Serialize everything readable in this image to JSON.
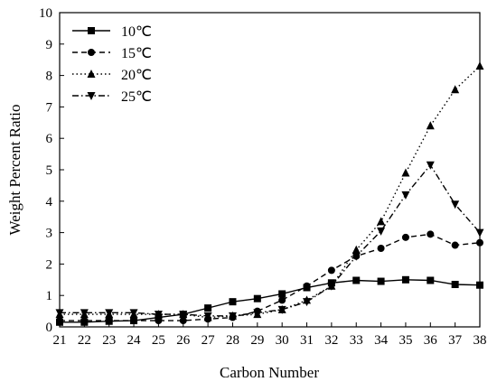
{
  "chart_data": {
    "type": "line",
    "title": "",
    "xlabel": "Carbon Number",
    "ylabel": "Weight Percent Ratio",
    "x": [
      21,
      22,
      23,
      24,
      25,
      26,
      27,
      28,
      29,
      30,
      31,
      32,
      33,
      34,
      35,
      36,
      37,
      38
    ],
    "xlim": [
      21,
      38
    ],
    "ylim": [
      0,
      10
    ],
    "yticks": [
      0,
      1,
      2,
      3,
      4,
      5,
      6,
      7,
      8,
      9,
      10
    ],
    "grid": false,
    "legend_position": "top-left",
    "series": [
      {
        "name": "10℃",
        "line_style": "solid",
        "marker": "square",
        "values": [
          0.15,
          0.15,
          0.18,
          0.2,
          0.3,
          0.4,
          0.6,
          0.8,
          0.9,
          1.05,
          1.25,
          1.4,
          1.48,
          1.45,
          1.5,
          1.48,
          1.35,
          1.33
        ]
      },
      {
        "name": "15℃",
        "line_style": "dashed",
        "marker": "circle",
        "values": [
          0.2,
          0.2,
          0.2,
          0.2,
          0.2,
          0.2,
          0.25,
          0.3,
          0.5,
          0.85,
          1.3,
          1.8,
          2.25,
          2.5,
          2.85,
          2.95,
          2.6,
          2.68
        ]
      },
      {
        "name": "20℃",
        "line_style": "dotted",
        "marker": "triangle-up",
        "values": [
          0.4,
          0.4,
          0.4,
          0.4,
          0.4,
          0.4,
          0.3,
          0.35,
          0.4,
          0.55,
          0.85,
          1.3,
          2.45,
          3.35,
          4.9,
          6.4,
          7.55,
          8.3
        ]
      },
      {
        "name": "25℃",
        "line_style": "dash-dot",
        "marker": "triangle-down",
        "values": [
          0.45,
          0.45,
          0.45,
          0.45,
          0.4,
          0.4,
          0.35,
          0.35,
          0.45,
          0.55,
          0.8,
          1.3,
          2.25,
          3.05,
          4.2,
          5.15,
          3.9,
          3.0
        ]
      }
    ]
  }
}
